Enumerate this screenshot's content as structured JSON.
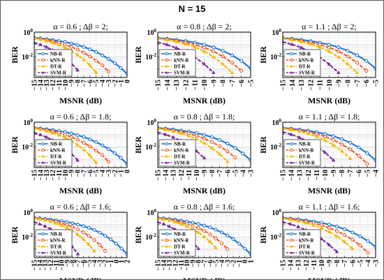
{
  "figure": {
    "title": "N = 15"
  },
  "series_styles": [
    {
      "name": "NB-R",
      "color": "#1f77d4",
      "marker": "circle"
    },
    {
      "name": "kNN-R",
      "color": "#ee5a24",
      "marker": "circle"
    },
    {
      "name": "DT-R",
      "color": "#f5b800",
      "marker": "triangle"
    },
    {
      "name": "SVM-R",
      "color": "#7b2a9a",
      "marker": "triangle"
    }
  ],
  "chart_data": [
    {
      "type": "line",
      "title": "α = 0.6 ; Δβ = 2;",
      "xlabel": "MSNR (dB)",
      "ylabel": "BER",
      "yscale": "log",
      "ylim": [
        0.0002,
        1
      ],
      "grid": true,
      "legend": "bottom-left",
      "x": [
        -15,
        -14,
        -13,
        -12,
        -11,
        -10,
        -9,
        -8,
        -7,
        -6,
        -5,
        -4,
        -3,
        -2,
        -1,
        0
      ],
      "series": [
        {
          "name": "NB-R",
          "values": [
            0.35,
            0.31,
            0.27,
            0.23,
            0.19,
            0.155,
            0.12,
            0.088,
            0.062,
            0.04,
            0.024,
            0.013,
            0.0065,
            0.003,
            0.0012,
            0.0004
          ]
        },
        {
          "name": "kNN-R",
          "values": [
            0.33,
            0.28,
            0.23,
            0.18,
            0.135,
            0.095,
            0.063,
            0.038,
            0.021,
            0.0105,
            0.0048,
            0.002,
            0.0006,
            null,
            null,
            null
          ]
        },
        {
          "name": "DT-R",
          "values": [
            0.31,
            0.25,
            0.19,
            0.135,
            0.09,
            0.055,
            0.03,
            0.014,
            0.0058,
            0.002,
            0.0005,
            null,
            null,
            null,
            null,
            null
          ]
        },
        {
          "name": "SVM-R",
          "values": [
            0.14,
            0.095,
            0.06,
            0.034,
            0.017,
            0.0075,
            0.0028,
            0.0008,
            null,
            null,
            null,
            null,
            null,
            null,
            null,
            null
          ]
        }
      ]
    },
    {
      "type": "line",
      "title": "α = 0.8 ; Δβ = 2;",
      "xlabel": "MSNR (dB)",
      "ylabel": "BER",
      "yscale": "log",
      "ylim": [
        0.0002,
        1
      ],
      "grid": true,
      "legend": "bottom-left",
      "x": [
        -15,
        -14,
        -13,
        -12,
        -11,
        -10,
        -9,
        -8,
        -7,
        -6,
        -5
      ],
      "series": [
        {
          "name": "NB-R",
          "values": [
            0.33,
            0.29,
            0.24,
            0.19,
            0.14,
            0.095,
            0.058,
            0.03,
            0.013,
            0.0045,
            0.0011
          ]
        },
        {
          "name": "kNN-R",
          "values": [
            0.31,
            0.26,
            0.2,
            0.145,
            0.095,
            0.055,
            0.027,
            0.0105,
            0.0032,
            0.0007,
            null
          ]
        },
        {
          "name": "DT-R",
          "values": [
            0.29,
            0.23,
            0.165,
            0.105,
            0.058,
            0.027,
            0.0095,
            0.0025,
            0.0005,
            null,
            null
          ]
        },
        {
          "name": "SVM-R",
          "values": [
            0.15,
            0.095,
            0.052,
            0.024,
            0.009,
            0.0025,
            0.0005,
            null,
            null,
            null,
            null
          ]
        }
      ]
    },
    {
      "type": "line",
      "title": "α = 1.1 ; Δβ = 2;",
      "xlabel": "MSNR (dB)",
      "ylabel": "BER",
      "yscale": "log",
      "ylim": [
        0.0002,
        1
      ],
      "grid": true,
      "legend": "bottom-left",
      "x": [
        -15,
        -14,
        -13,
        -12,
        -11,
        -10,
        -9,
        -8,
        -7,
        -6,
        -5
      ],
      "series": [
        {
          "name": "NB-R",
          "values": [
            0.33,
            0.29,
            0.24,
            0.19,
            0.14,
            0.095,
            0.058,
            0.03,
            0.013,
            0.0045,
            0.0011
          ]
        },
        {
          "name": "kNN-R",
          "values": [
            0.31,
            0.26,
            0.2,
            0.145,
            0.095,
            0.055,
            0.027,
            0.0105,
            0.0032,
            0.0007,
            null
          ]
        },
        {
          "name": "DT-R",
          "values": [
            0.29,
            0.23,
            0.165,
            0.105,
            0.058,
            0.027,
            0.0095,
            0.0025,
            0.0005,
            null,
            null
          ]
        },
        {
          "name": "SVM-R",
          "values": [
            0.16,
            0.1,
            0.055,
            0.025,
            0.009,
            0.0024,
            0.0005,
            null,
            null,
            null,
            null
          ]
        }
      ]
    },
    {
      "type": "line",
      "title": "α = 0.6 ; Δβ = 1.8;",
      "xlabel": "MSNR (dB)",
      "ylabel": "BER",
      "yscale": "log",
      "ylim": [
        0.0002,
        1
      ],
      "grid": true,
      "legend": "bottom-left",
      "x": [
        -15,
        -14,
        -13,
        -12,
        -11,
        -10,
        -9,
        -8,
        -7,
        -6,
        -5,
        -4,
        -3,
        -2,
        -1,
        0
      ],
      "series": [
        {
          "name": "NB-R",
          "values": [
            0.35,
            0.31,
            0.27,
            0.23,
            0.19,
            0.155,
            0.12,
            0.088,
            0.062,
            0.04,
            0.024,
            0.013,
            0.0065,
            0.003,
            0.0012,
            0.0004
          ]
        },
        {
          "name": "kNN-R",
          "values": [
            0.33,
            0.28,
            0.23,
            0.18,
            0.135,
            0.095,
            0.063,
            0.038,
            0.021,
            0.0105,
            0.0048,
            0.002,
            0.0006,
            null,
            null,
            null
          ]
        },
        {
          "name": "DT-R",
          "values": [
            0.31,
            0.25,
            0.19,
            0.135,
            0.09,
            0.055,
            0.03,
            0.014,
            0.0058,
            0.002,
            0.0005,
            null,
            null,
            null,
            null,
            null
          ]
        },
        {
          "name": "SVM-R",
          "values": [
            0.14,
            0.095,
            0.06,
            0.034,
            0.017,
            0.0075,
            0.0028,
            0.0008,
            null,
            null,
            null,
            null,
            null,
            null,
            null,
            null
          ]
        }
      ]
    },
    {
      "type": "line",
      "title": "α = 0.8 ; Δβ = 1.8;",
      "xlabel": "MSNR (dB)",
      "ylabel": "BER",
      "yscale": "log",
      "ylim": [
        0.0002,
        1
      ],
      "grid": true,
      "legend": "bottom-left",
      "x": [
        -15,
        -14,
        -13,
        -12,
        -11,
        -10,
        -9,
        -8,
        -7,
        -6,
        -5,
        -4,
        -3
      ],
      "series": [
        {
          "name": "NB-R",
          "values": [
            0.34,
            0.3,
            0.26,
            0.21,
            0.17,
            0.13,
            0.092,
            0.06,
            0.035,
            0.018,
            0.008,
            0.0028,
            0.0008
          ]
        },
        {
          "name": "kNN-R",
          "values": [
            0.32,
            0.27,
            0.22,
            0.17,
            0.12,
            0.08,
            0.047,
            0.024,
            0.011,
            0.0042,
            0.0013,
            null,
            null
          ]
        },
        {
          "name": "DT-R",
          "values": [
            0.3,
            0.24,
            0.18,
            0.125,
            0.078,
            0.043,
            0.02,
            0.0078,
            0.0025,
            0.0006,
            null,
            null,
            null
          ]
        },
        {
          "name": "SVM-R",
          "values": [
            0.15,
            0.098,
            0.058,
            0.03,
            0.013,
            0.0045,
            0.0012,
            null,
            null,
            null,
            null,
            null,
            null
          ]
        }
      ]
    },
    {
      "type": "line",
      "title": "α = 1.1 ; Δβ = 1.8;",
      "xlabel": "MSNR (dB)",
      "ylabel": "BER",
      "yscale": "log",
      "ylim": [
        0.0002,
        1
      ],
      "grid": true,
      "legend": "bottom-left",
      "x": [
        -15,
        -14,
        -13,
        -12,
        -11,
        -10,
        -9,
        -8,
        -7,
        -6,
        -5,
        -4
      ],
      "series": [
        {
          "name": "NB-R",
          "values": [
            0.34,
            0.3,
            0.25,
            0.2,
            0.155,
            0.11,
            0.072,
            0.042,
            0.021,
            0.0088,
            0.003,
            0.0008
          ]
        },
        {
          "name": "kNN-R",
          "values": [
            0.32,
            0.27,
            0.21,
            0.16,
            0.11,
            0.068,
            0.036,
            0.016,
            0.006,
            0.0018,
            0.0004,
            null
          ]
        },
        {
          "name": "DT-R",
          "values": [
            0.3,
            0.24,
            0.175,
            0.115,
            0.068,
            0.034,
            0.014,
            0.0045,
            0.0011,
            null,
            null,
            null
          ]
        },
        {
          "name": "SVM-R",
          "values": [
            0.16,
            0.1,
            0.056,
            0.027,
            0.011,
            0.0035,
            0.0008,
            null,
            null,
            null,
            null,
            null
          ]
        }
      ]
    },
    {
      "type": "line",
      "title": "α = 0.6 ; Δβ = 1.6;",
      "xlabel": "MSNR (dB)",
      "ylabel": "BER",
      "yscale": "log",
      "ylim": [
        0.0002,
        1
      ],
      "grid": true,
      "legend": "bottom-left",
      "x": [
        -15,
        -14,
        -13,
        -12,
        -11,
        -10,
        -9,
        -8,
        -7,
        -6,
        -5,
        -4,
        -3,
        -2,
        -1,
        0,
        1,
        2
      ],
      "series": [
        {
          "name": "NB-R",
          "values": [
            0.36,
            0.33,
            0.29,
            0.26,
            0.22,
            0.19,
            0.16,
            0.13,
            0.1,
            0.075,
            0.054,
            0.036,
            0.022,
            0.012,
            0.0062,
            0.0028,
            0.0011,
            0.0004
          ]
        },
        {
          "name": "kNN-R",
          "values": [
            0.34,
            0.3,
            0.26,
            0.21,
            0.17,
            0.13,
            0.095,
            0.065,
            0.041,
            0.023,
            0.012,
            0.0055,
            0.0022,
            0.0007,
            null,
            null,
            null,
            null
          ]
        },
        {
          "name": "DT-R",
          "values": [
            0.32,
            0.27,
            0.22,
            0.17,
            0.125,
            0.085,
            0.053,
            0.03,
            0.015,
            0.0065,
            0.0024,
            0.0007,
            null,
            null,
            null,
            null,
            null,
            null
          ]
        },
        {
          "name": "SVM-R",
          "values": [
            0.16,
            0.11,
            0.072,
            0.043,
            0.023,
            0.011,
            0.0045,
            0.0015,
            0.0004,
            null,
            null,
            null,
            null,
            null,
            null,
            null,
            null,
            null
          ]
        }
      ]
    },
    {
      "type": "line",
      "title": "α = 0.8 ; Δβ = 1.6;",
      "xlabel": "MSNR (dB)",
      "ylabel": "BER",
      "yscale": "log",
      "ylim": [
        0.0002,
        1
      ],
      "grid": true,
      "legend": "bottom-left",
      "x": [
        -15,
        -14,
        -13,
        -12,
        -11,
        -10,
        -9,
        -8,
        -7,
        -6,
        -5,
        -4,
        -3,
        -2,
        -1,
        0,
        1
      ],
      "series": [
        {
          "name": "NB-R",
          "values": [
            0.36,
            0.32,
            0.28,
            0.25,
            0.21,
            0.175,
            0.14,
            0.11,
            0.082,
            0.058,
            0.038,
            0.023,
            0.013,
            0.0065,
            0.0028,
            0.0011,
            0.0004
          ]
        },
        {
          "name": "kNN-R",
          "values": [
            0.34,
            0.29,
            0.25,
            0.2,
            0.155,
            0.115,
            0.08,
            0.052,
            0.031,
            0.016,
            0.0075,
            0.003,
            0.001,
            null,
            null,
            null,
            null
          ]
        },
        {
          "name": "DT-R",
          "values": [
            0.32,
            0.26,
            0.21,
            0.16,
            0.11,
            0.072,
            0.042,
            0.022,
            0.01,
            0.004,
            0.0013,
            null,
            null,
            null,
            null,
            null,
            null
          ]
        },
        {
          "name": "SVM-R",
          "values": [
            0.16,
            0.11,
            0.07,
            0.04,
            0.021,
            0.0095,
            0.0036,
            0.0011,
            null,
            null,
            null,
            null,
            null,
            null,
            null,
            null,
            null
          ]
        }
      ]
    },
    {
      "type": "line",
      "title": "α = 1.1 ; Δβ = 1.6;",
      "xlabel": "MSNR (dB)",
      "ylabel": "BER",
      "yscale": "log",
      "ylim": [
        0.0002,
        1
      ],
      "grid": true,
      "legend": "bottom-left",
      "x": [
        -15,
        -14,
        -13,
        -12,
        -11,
        -10,
        -9,
        -8,
        -7,
        -6,
        -5,
        -4,
        -3
      ],
      "series": [
        {
          "name": "NB-R",
          "values": [
            0.35,
            0.31,
            0.27,
            0.22,
            0.18,
            0.14,
            0.1,
            0.068,
            0.042,
            0.023,
            0.011,
            0.0045,
            0.0015
          ]
        },
        {
          "name": "kNN-R",
          "values": [
            0.33,
            0.28,
            0.23,
            0.18,
            0.13,
            0.088,
            0.054,
            0.029,
            0.014,
            0.0058,
            0.002,
            0.0005,
            null
          ]
        },
        {
          "name": "DT-R",
          "values": [
            0.31,
            0.25,
            0.19,
            0.135,
            0.088,
            0.05,
            0.025,
            0.011,
            0.0038,
            0.0011,
            null,
            null,
            null
          ]
        },
        {
          "name": "SVM-R",
          "values": [
            0.16,
            0.11,
            0.065,
            0.035,
            0.017,
            0.0068,
            0.0022,
            0.0006,
            null,
            null,
            null,
            null,
            null
          ]
        }
      ]
    }
  ]
}
